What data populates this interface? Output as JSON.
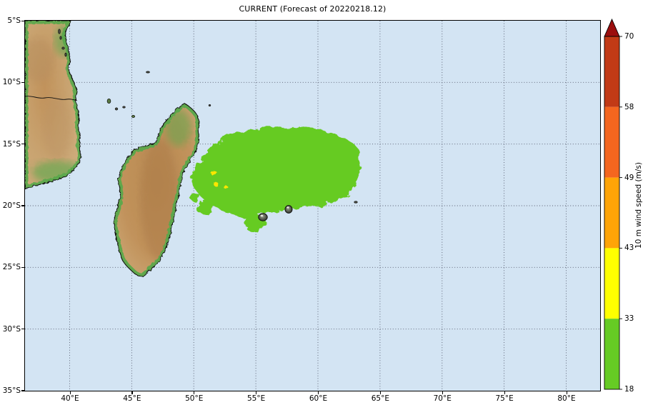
{
  "title": "CURRENT (Forecast of 20220218.12)",
  "axes": {
    "x_ticks": [
      "40°E",
      "45°E",
      "50°E",
      "55°E",
      "60°E",
      "65°E",
      "70°E",
      "75°E",
      "80°E"
    ],
    "y_ticks": [
      "5°S",
      "10°S",
      "15°S",
      "20°S",
      "25°S",
      "30°S",
      "35°S"
    ]
  },
  "colorbar": {
    "label": "10 m wind speed (m/s)",
    "tick_labels": [
      "70",
      "58",
      "49",
      "43",
      "33",
      "18"
    ],
    "segments": [
      {
        "range": "18-33",
        "color": "#66cb24"
      },
      {
        "range": "33-43",
        "color": "#ffff00"
      },
      {
        "range": "43-49",
        "color": "#ffa407"
      },
      {
        "range": "49-58",
        "color": "#f4661f"
      },
      {
        "range": "58-70",
        "color": "#c23a16"
      }
    ],
    "over_arrow_color": "#9b0e0e"
  },
  "map": {
    "ocean_color": "#d3e4f3",
    "grid_color": "#565b6e",
    "coastline_color": "#111111",
    "land_tan": "#cfae7e",
    "land_inner": "#c1925b",
    "land_green_fringe": "#58a84b",
    "island_dark": "#4a4d42",
    "swath_color": "#66cb24",
    "patch_color": "#ffe600",
    "features": {
      "wind_swath": {
        "threshold": "wind >= 18 m/s (green band of colorbar)",
        "lon_range": "~50–63°E",
        "lat_range": "~14–21°S"
      },
      "storm_force_patches": {
        "threshold": "wind >= 33 m/s (yellow band)",
        "location": "~52–53°E, 18–20°S"
      },
      "landmasses": [
        "africa-east-coast",
        "madagascar",
        "comoros-islands",
        "zanzibar-islands",
        "seychelles-islet",
        "reunion",
        "mauritius",
        "rodrigues"
      ]
    }
  }
}
